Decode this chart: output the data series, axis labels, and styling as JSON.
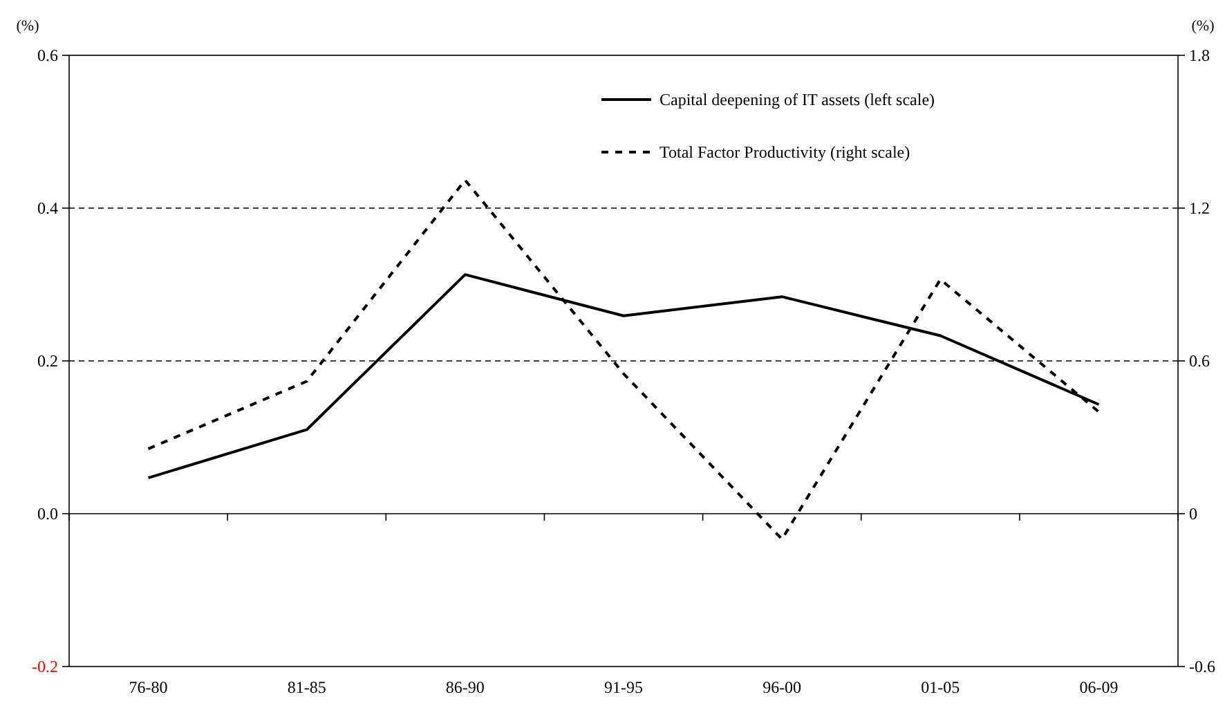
{
  "chart_data": {
    "type": "line",
    "categories": [
      "76-80",
      "81-85",
      "86-90",
      "91-95",
      "96-00",
      "01-05",
      "06-09"
    ],
    "ylabel": "(%)",
    "y2label": "(%)",
    "ylim": [
      -0.2,
      0.6
    ],
    "yticks": [
      {
        "value": -0.2,
        "label": "-0.2"
      },
      {
        "value": 0,
        "label": "0.0"
      },
      0.2,
      0.4,
      0.6
    ],
    "y2lim": [
      -0.6,
      1.8
    ],
    "y2ticks": [
      -0.6,
      0,
      0.6,
      1.2,
      1.8
    ],
    "grid": "y",
    "legend": "top right",
    "marker": "none",
    "series": [
      {
        "name": "Capital deepening of IT assets (left scale)",
        "color": "#000000",
        "line_style": "solid",
        "values": [
          0.047,
          0.11,
          0.313,
          0.259,
          0.284,
          0.233,
          0.143
        ]
      },
      {
        "name": "Total Factor Productivity (right scale)",
        "color": "#000000",
        "line_style": "dashed",
        "axis": "y2",
        "values": [
          0.255,
          0.52,
          1.31,
          0.55,
          -0.1,
          0.92,
          0.4
        ]
      }
    ]
  }
}
